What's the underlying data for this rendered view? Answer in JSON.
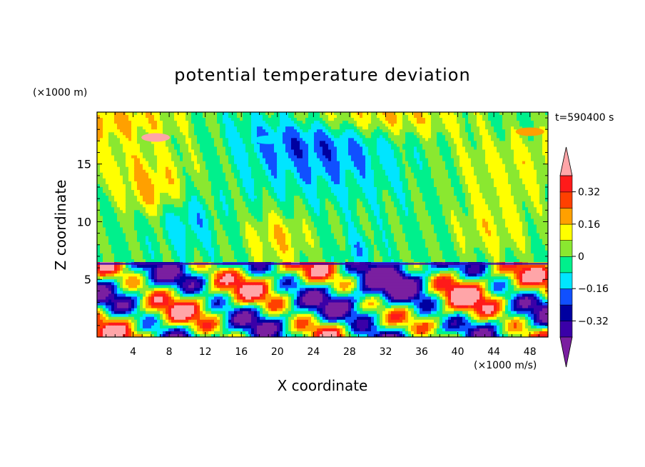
{
  "chart_data": {
    "type": "heatmap",
    "title": "potential temperature deviation",
    "xlabel": "X coordinate",
    "ylabel": "Z coordinate",
    "x_unit": "(×1000 m/s)",
    "y_unit": "(×1000 m)",
    "time_label": "t=590400 s",
    "xlim": [
      0,
      50
    ],
    "ylim": [
      0,
      19.5
    ],
    "x_ticks": [
      "4",
      "8",
      "12",
      "16",
      "20",
      "24",
      "28",
      "32",
      "36",
      "40",
      "44",
      "48"
    ],
    "y_ticks": [
      "5",
      "10",
      "15"
    ],
    "colorbar": {
      "levels": [
        -0.4,
        -0.32,
        -0.24,
        -0.16,
        -0.08,
        0,
        0.08,
        0.16,
        0.24,
        0.32,
        0.4
      ],
      "labels": [
        "0.32",
        "0.16",
        "0",
        "−0.16",
        "−0.32"
      ],
      "label_values": [
        0.32,
        0.16,
        0,
        -0.16,
        -0.32
      ],
      "colors": [
        "#7a1fa0",
        "#3a00a8",
        "#0000a0",
        "#1050ff",
        "#00e5ff",
        "#00f08c",
        "#8ae830",
        "#ffff00",
        "#ffa000",
        "#ff4000",
        "#ff1a1a",
        "#ffa5a8"
      ],
      "extend": "both"
    },
    "features": [
      {
        "x": 6.5,
        "z": 17.3,
        "value": 0.42
      },
      {
        "x": 19,
        "z": 17.1,
        "value": -0.14
      },
      {
        "x": 48,
        "z": 17.8,
        "value": 0.18
      }
    ]
  }
}
